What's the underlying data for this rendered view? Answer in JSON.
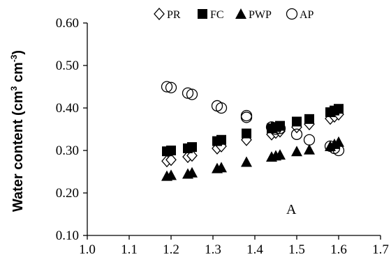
{
  "chart_data": {
    "type": "scatter",
    "title": "",
    "xlabel": "",
    "ylabel": {
      "text": "Water content (cm",
      "sup1": "3",
      "mid": " cm",
      "sup2": "-3",
      "end": ")"
    },
    "panel_label": "A",
    "xlim": [
      1.0,
      1.7
    ],
    "ylim": [
      0.1,
      0.6
    ],
    "x_ticks": [
      "1.0",
      "1.1",
      "1.2",
      "1.3",
      "1.4",
      "1.5",
      "1.6",
      "1.7"
    ],
    "y_ticks": [
      "0.10",
      "0.20",
      "0.30",
      "0.40",
      "0.50",
      "0.60"
    ],
    "grid": false,
    "legend_position": "top",
    "series": [
      {
        "name": "PR",
        "marker": "diamond-open",
        "x": [
          1.19,
          1.2,
          1.24,
          1.25,
          1.31,
          1.32,
          1.38,
          1.44,
          1.45,
          1.46,
          1.5,
          1.53,
          1.58,
          1.59,
          1.6
        ],
        "y": [
          0.275,
          0.278,
          0.285,
          0.288,
          0.305,
          0.31,
          0.325,
          0.338,
          0.342,
          0.345,
          0.355,
          0.362,
          0.375,
          0.38,
          0.385
        ]
      },
      {
        "name": "FC",
        "marker": "square-filled",
        "x": [
          1.19,
          1.2,
          1.24,
          1.25,
          1.31,
          1.32,
          1.38,
          1.44,
          1.45,
          1.46,
          1.5,
          1.53,
          1.58,
          1.59,
          1.6
        ],
        "y": [
          0.298,
          0.3,
          0.305,
          0.308,
          0.322,
          0.325,
          0.34,
          0.352,
          0.355,
          0.358,
          0.368,
          0.374,
          0.39,
          0.394,
          0.398
        ]
      },
      {
        "name": "PWP",
        "marker": "triangle-filled",
        "x": [
          1.19,
          1.2,
          1.24,
          1.25,
          1.31,
          1.32,
          1.38,
          1.44,
          1.45,
          1.46,
          1.5,
          1.53,
          1.58,
          1.59,
          1.6
        ],
        "y": [
          0.24,
          0.242,
          0.245,
          0.248,
          0.258,
          0.26,
          0.273,
          0.285,
          0.288,
          0.29,
          0.298,
          0.302,
          0.31,
          0.315,
          0.32
        ]
      },
      {
        "name": "AP",
        "marker": "circle-open",
        "x": [
          1.19,
          1.2,
          1.24,
          1.25,
          1.31,
          1.32,
          1.38,
          1.38,
          1.44,
          1.45,
          1.46,
          1.5,
          1.53,
          1.58,
          1.59,
          1.6
        ],
        "y": [
          0.45,
          0.448,
          0.435,
          0.432,
          0.405,
          0.4,
          0.382,
          0.378,
          0.355,
          0.35,
          0.352,
          0.338,
          0.325,
          0.31,
          0.305,
          0.3
        ]
      }
    ],
    "style": {
      "color": "#000000"
    }
  }
}
